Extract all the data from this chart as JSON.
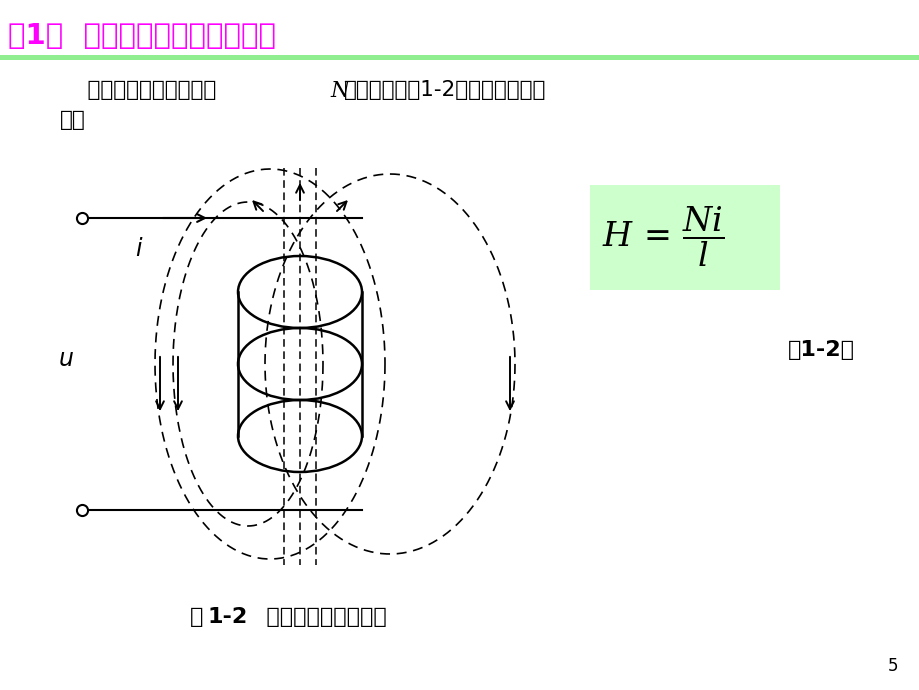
{
  "title": "第1章  电磁感应原理与磁路分析",
  "title_color": "#FF00FF",
  "title_bar_color": "#90EE90",
  "formula_bg": "#CCFFCC",
  "formula_label": "（1-2）",
  "fig_caption_pre": "图",
  "fig_caption_num": "1-2",
  "fig_caption_post": "   通电线圈产生的磁场",
  "page_num": "5",
  "bg_color": "#FFFFFF",
  "body_line1a": "    如果载流导体是匝数为",
  "body_line1b": "N",
  "body_line1c": "的线圈（如图1-2），则上式可表",
  "body_line2": "示为"
}
